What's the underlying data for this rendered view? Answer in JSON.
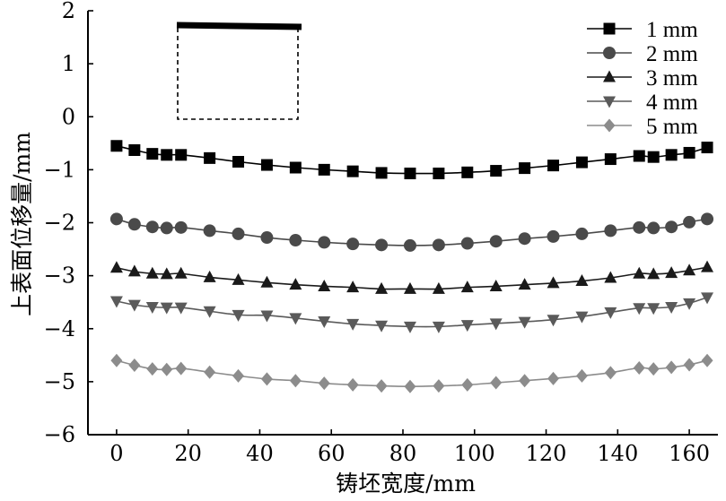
{
  "chart_data": {
    "type": "line",
    "title": "",
    "xlabel": "铸坯宽度/mm",
    "ylabel": "上表面位移量/mm",
    "xlim": [
      -8,
      168
    ],
    "ylim": [
      -6,
      2
    ],
    "xticks": [
      0,
      20,
      40,
      60,
      80,
      100,
      120,
      140,
      160
    ],
    "yticks": [
      2,
      1,
      0,
      -1,
      -2,
      -3,
      -4,
      -5,
      -6
    ],
    "ytick_labels": [
      "2",
      "1",
      "0",
      "−1",
      "−2",
      "−3",
      "−4",
      "−5",
      "−6"
    ],
    "grid": false,
    "legend_position": "top-right",
    "x": [
      0,
      5,
      10,
      14,
      18,
      26,
      34,
      42,
      50,
      58,
      66,
      74,
      82,
      90,
      98,
      106,
      114,
      122,
      130,
      138,
      146,
      150,
      155,
      160,
      165
    ],
    "series": [
      {
        "name": "1 mm",
        "marker": "square",
        "color": "#000000",
        "values": [
          -0.55,
          -0.63,
          -0.7,
          -0.72,
          -0.72,
          -0.78,
          -0.85,
          -0.91,
          -0.96,
          -1.0,
          -1.03,
          -1.06,
          -1.07,
          -1.07,
          -1.05,
          -1.02,
          -0.97,
          -0.92,
          -0.86,
          -0.8,
          -0.74,
          -0.76,
          -0.72,
          -0.68,
          -0.58
        ]
      },
      {
        "name": "2 mm",
        "marker": "circle",
        "color": "#4a4a4a",
        "values": [
          -1.93,
          -2.03,
          -2.08,
          -2.1,
          -2.09,
          -2.15,
          -2.21,
          -2.28,
          -2.33,
          -2.37,
          -2.4,
          -2.42,
          -2.43,
          -2.42,
          -2.39,
          -2.35,
          -2.3,
          -2.26,
          -2.21,
          -2.15,
          -2.09,
          -2.1,
          -2.08,
          -1.99,
          -1.93
        ]
      },
      {
        "name": "3 mm",
        "marker": "triangle-up",
        "color": "#1a1a1a",
        "values": [
          -2.85,
          -2.92,
          -2.96,
          -2.97,
          -2.96,
          -3.03,
          -3.08,
          -3.13,
          -3.17,
          -3.2,
          -3.22,
          -3.25,
          -3.25,
          -3.25,
          -3.22,
          -3.2,
          -3.17,
          -3.14,
          -3.1,
          -3.04,
          -2.96,
          -2.97,
          -2.95,
          -2.9,
          -2.84
        ]
      },
      {
        "name": "4 mm",
        "marker": "triangle-down",
        "color": "#5a5a5a",
        "values": [
          -3.48,
          -3.55,
          -3.59,
          -3.6,
          -3.6,
          -3.67,
          -3.74,
          -3.75,
          -3.8,
          -3.86,
          -3.91,
          -3.94,
          -3.96,
          -3.96,
          -3.93,
          -3.9,
          -3.87,
          -3.83,
          -3.77,
          -3.69,
          -3.61,
          -3.61,
          -3.59,
          -3.52,
          -3.41
        ]
      },
      {
        "name": "5 mm",
        "marker": "diamond",
        "color": "#8c8c8c",
        "values": [
          -4.6,
          -4.69,
          -4.76,
          -4.77,
          -4.75,
          -4.82,
          -4.89,
          -4.95,
          -4.98,
          -5.03,
          -5.06,
          -5.08,
          -5.09,
          -5.08,
          -5.06,
          -5.02,
          -4.98,
          -4.94,
          -4.89,
          -4.83,
          -4.74,
          -4.76,
          -4.73,
          -4.68,
          -4.6
        ]
      }
    ]
  }
}
